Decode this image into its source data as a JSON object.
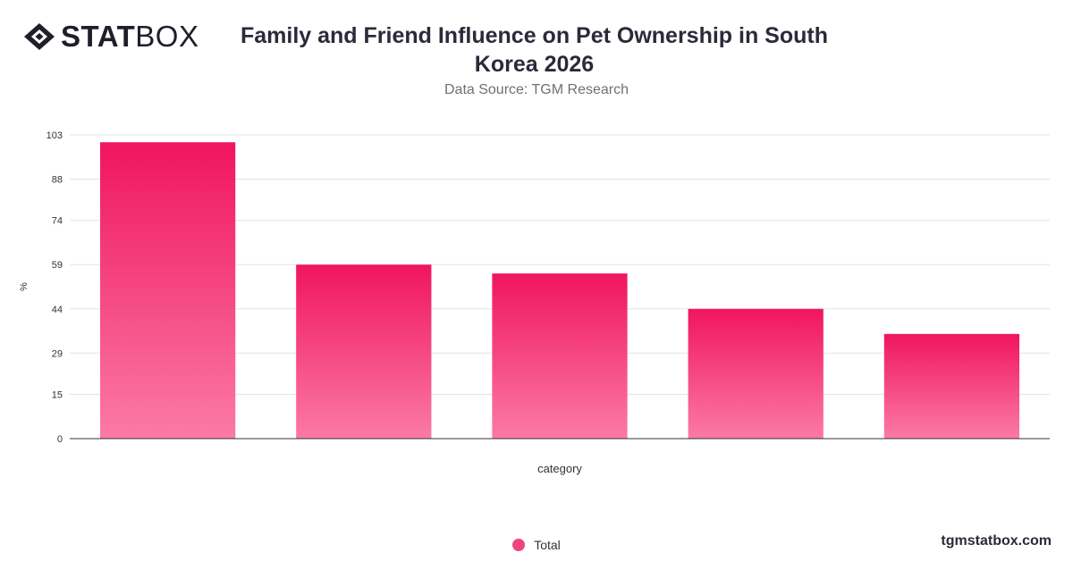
{
  "brand": {
    "logo_bold": "STAT",
    "logo_light": "BOX",
    "logo_icon": "statbox-diamond-logo",
    "footer_url": "tgmstatbox.com"
  },
  "header": {
    "title": "Family and Friend Influence on Pet Ownership in South Korea 2026",
    "subtitle": "Data Source: TGM Research"
  },
  "chart_data": {
    "type": "bar",
    "categories": [
      "",
      "",
      "",
      "",
      ""
    ],
    "series": [
      {
        "name": "Total",
        "values": [
          100.5,
          59,
          56,
          44,
          35.5
        ]
      }
    ],
    "xlabel": "category",
    "ylabel": "%",
    "ylim": [
      0,
      103
    ],
    "yticks": [
      0,
      15,
      29,
      44,
      59,
      74,
      88,
      103
    ],
    "grid": true,
    "legend": "bottom-center",
    "colors": {
      "bar_top": "#f0155f",
      "bar_bottom": "#fb7aa6",
      "legend": "#f0447e"
    }
  }
}
